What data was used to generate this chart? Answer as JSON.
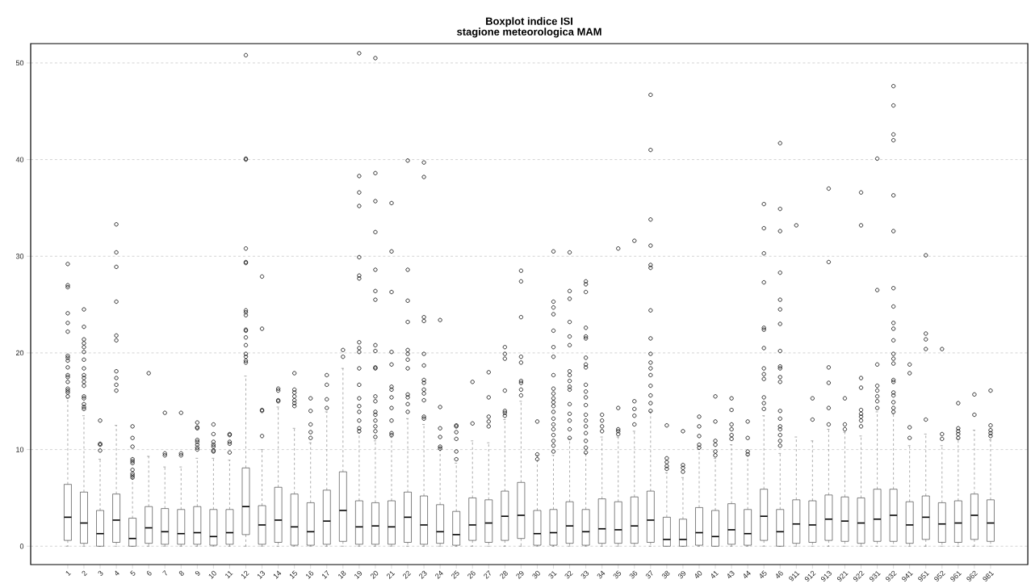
{
  "chart_data": {
    "type": "box",
    "title": "Boxplot indice ISI",
    "subtitle": "stagione meteorologica MAM",
    "categories": [
      "1",
      "2",
      "3",
      "4",
      "5",
      "6",
      "7",
      "8",
      "9",
      "10",
      "11",
      "12",
      "13",
      "14",
      "15",
      "16",
      "17",
      "18",
      "19",
      "20",
      "21",
      "22",
      "23",
      "24",
      "25",
      "26",
      "27",
      "28",
      "29",
      "30",
      "31",
      "32",
      "33",
      "34",
      "35",
      "36",
      "37",
      "38",
      "39",
      "40",
      "41",
      "43",
      "44",
      "45",
      "46",
      "911",
      "912",
      "913",
      "921",
      "922",
      "931",
      "932",
      "941",
      "951",
      "952",
      "961",
      "962",
      "981"
    ],
    "boxes": [
      {
        "low": 0,
        "q1": 0.6,
        "median": 3.0,
        "q3": 6.4,
        "high": 15.3,
        "outliers": [
          29.2,
          27.0,
          26.8,
          24.1,
          23.1,
          22.2,
          19.7,
          19.5,
          19.2,
          18.5,
          17.7,
          17.5,
          17.0,
          16.3,
          16.1,
          15.9,
          15.5
        ]
      },
      {
        "low": 0,
        "q1": 0.3,
        "median": 2.4,
        "q3": 5.6,
        "high": 13.5,
        "outliers": [
          24.5,
          22.7,
          21.4,
          21.0,
          20.6,
          20.1,
          19.3,
          18.4,
          17.7,
          17.4,
          17.0,
          16.6,
          15.5,
          15.3,
          14.7,
          14.4,
          14.2
        ]
      },
      {
        "low": 0,
        "q1": 0,
        "median": 1.3,
        "q3": 3.7,
        "high": 9.0,
        "outliers": [
          13.0,
          10.6,
          10.5,
          9.9
        ]
      },
      {
        "low": 0,
        "q1": 0.4,
        "median": 2.7,
        "q3": 5.4,
        "high": 12.5,
        "outliers": [
          33.3,
          30.4,
          28.9,
          25.3,
          21.8,
          21.3,
          18.1,
          17.4,
          16.7,
          16.1
        ]
      },
      {
        "low": 0,
        "q1": 0,
        "median": 0.8,
        "q3": 2.9,
        "high": 7.0,
        "outliers": [
          12.4,
          11.2,
          10.3,
          9.0,
          8.8,
          8.6,
          7.9,
          7.5,
          7.3,
          7.1
        ]
      },
      {
        "low": 0,
        "q1": 0.3,
        "median": 1.9,
        "q3": 4.1,
        "high": 9.3,
        "outliers": [
          17.9
        ]
      },
      {
        "low": 0,
        "q1": 0.2,
        "median": 1.5,
        "q3": 3.9,
        "high": 8.2,
        "outliers": [
          13.8,
          9.6,
          9.4
        ]
      },
      {
        "low": 0,
        "q1": 0.2,
        "median": 1.3,
        "q3": 3.8,
        "high": 8.2,
        "outliers": [
          13.8,
          9.6,
          9.4
        ]
      },
      {
        "low": 0,
        "q1": 0.2,
        "median": 1.4,
        "q3": 4.1,
        "high": 9.1,
        "outliers": [
          12.8,
          12.3,
          12.2,
          11.0,
          10.8,
          10.5,
          10.2,
          10.0
        ]
      },
      {
        "low": 0,
        "q1": 0.1,
        "median": 1.0,
        "q3": 3.8,
        "high": 9.1,
        "outliers": [
          12.6,
          11.6,
          10.8,
          10.5,
          10.3,
          9.9,
          9.8
        ]
      },
      {
        "low": 0,
        "q1": 0.2,
        "median": 1.4,
        "q3": 3.8,
        "high": 8.9,
        "outliers": [
          11.6,
          11.5,
          10.8,
          10.6,
          9.7
        ]
      },
      {
        "low": 0,
        "q1": 1.2,
        "median": 4.1,
        "q3": 8.1,
        "high": 17.6,
        "outliers": [
          50.8,
          40.1,
          40.0,
          30.8,
          29.4,
          29.3,
          24.4,
          24.2,
          23.9,
          22.4,
          22.3,
          21.6,
          20.8,
          19.9,
          19.6,
          19.2,
          19.0
        ]
      },
      {
        "low": 0,
        "q1": 0.2,
        "median": 2.2,
        "q3": 4.2,
        "high": 10.0,
        "outliers": [
          27.9,
          22.5,
          14.1,
          14.0,
          11.4
        ]
      },
      {
        "low": 0,
        "q1": 0.4,
        "median": 2.7,
        "q3": 6.1,
        "high": 14.4,
        "outliers": [
          16.3,
          16.1,
          15.1,
          15.0
        ]
      },
      {
        "low": 0,
        "q1": 0.1,
        "median": 2.0,
        "q3": 5.4,
        "high": 12.2,
        "outliers": [
          17.9,
          16.2,
          15.9,
          15.5,
          15.1,
          14.8,
          14.5
        ]
      },
      {
        "low": 0,
        "q1": 0.1,
        "median": 1.5,
        "q3": 4.5,
        "high": 10.7,
        "outliers": [
          15.3,
          14.0,
          12.6,
          11.8,
          11.2
        ]
      },
      {
        "low": 0,
        "q1": 0.2,
        "median": 2.6,
        "q3": 5.8,
        "high": 13.9,
        "outliers": [
          17.7,
          16.7,
          15.2,
          14.3
        ]
      },
      {
        "low": 0,
        "q1": 0.5,
        "median": 3.7,
        "q3": 7.7,
        "high": 18.4,
        "outliers": [
          20.3,
          19.6
        ]
      },
      {
        "low": 0,
        "q1": 0.2,
        "median": 2.0,
        "q3": 4.7,
        "high": 11.7,
        "outliers": [
          51.0,
          38.3,
          36.6,
          35.2,
          29.9,
          28.0,
          27.7,
          21.1,
          20.5,
          20.1,
          18.4,
          16.7,
          15.3,
          14.5,
          13.9,
          13.0,
          12.2,
          11.9
        ]
      },
      {
        "low": 0,
        "q1": 0.2,
        "median": 2.1,
        "q3": 4.5,
        "high": 10.9,
        "outliers": [
          50.5,
          38.6,
          35.7,
          32.5,
          28.6,
          26.4,
          25.5,
          20.8,
          20.2,
          18.5,
          18.4,
          15.5,
          15.0,
          13.9,
          13.6,
          13.0,
          12.4,
          11.9,
          11.3
        ]
      },
      {
        "low": 0,
        "q1": 0.2,
        "median": 2.0,
        "q3": 4.7,
        "high": 11.3,
        "outliers": [
          35.5,
          30.5,
          26.3,
          20.1,
          18.8,
          16.5,
          16.2,
          15.4,
          14.3,
          13.0,
          11.7,
          11.5
        ]
      },
      {
        "low": 0,
        "q1": 0.4,
        "median": 3.0,
        "q3": 5.6,
        "high": 13.2,
        "outliers": [
          39.9,
          28.6,
          25.4,
          23.2,
          20.3,
          19.9,
          19.3,
          18.4,
          15.7,
          15.4,
          14.7,
          13.9
        ]
      },
      {
        "low": 0,
        "q1": 0.2,
        "median": 2.2,
        "q3": 5.2,
        "high": 12.6,
        "outliers": [
          39.7,
          38.2,
          23.7,
          23.3,
          19.9,
          18.7,
          17.2,
          16.9,
          16.2,
          15.8,
          15.1,
          13.4,
          13.2
        ]
      },
      {
        "low": 0,
        "q1": 0.3,
        "median": 1.5,
        "q3": 4.3,
        "high": 10.2,
        "outliers": [
          23.4,
          14.4,
          12.2,
          11.3,
          10.3,
          10.1
        ]
      },
      {
        "low": 0,
        "q1": 0.1,
        "median": 1.2,
        "q3": 3.6,
        "high": 8.6,
        "outliers": [
          12.5,
          12.4,
          11.8,
          11.1,
          9.8,
          9.0
        ]
      },
      {
        "low": 0,
        "q1": 0.6,
        "median": 2.2,
        "q3": 5.0,
        "high": 10.9,
        "outliers": [
          17.0,
          12.7
        ]
      },
      {
        "low": 0,
        "q1": 0.4,
        "median": 2.4,
        "q3": 4.8,
        "high": 10.7,
        "outliers": [
          18.0,
          15.4,
          13.4,
          12.9,
          12.4
        ]
      },
      {
        "low": 0,
        "q1": 0.6,
        "median": 3.1,
        "q3": 5.7,
        "high": 13.1,
        "outliers": [
          20.6,
          19.9,
          19.4,
          16.1,
          14.0,
          13.8,
          13.5
        ]
      },
      {
        "low": 0,
        "q1": 0.8,
        "median": 3.2,
        "q3": 6.6,
        "high": 15.0,
        "outliers": [
          28.5,
          27.4,
          23.7,
          19.6,
          19.0,
          17.1,
          16.9,
          16.2,
          15.6
        ]
      },
      {
        "low": 0,
        "q1": 0.1,
        "median": 1.3,
        "q3": 3.7,
        "high": 9.4,
        "outliers": [
          12.9,
          9.5,
          9.0
        ]
      },
      {
        "low": 0,
        "q1": 0.1,
        "median": 1.4,
        "q3": 3.8,
        "high": 9.4,
        "outliers": [
          30.5,
          25.3,
          24.7,
          24.0,
          22.3,
          20.6,
          19.6,
          17.7,
          16.3,
          15.8,
          15.3,
          14.9,
          14.5,
          13.9,
          13.2,
          12.6,
          12.1,
          11.5,
          10.9,
          10.4,
          9.8
        ]
      },
      {
        "low": 0,
        "q1": 0.3,
        "median": 2.1,
        "q3": 4.6,
        "high": 11.1,
        "outliers": [
          30.4,
          26.4,
          25.6,
          23.2,
          21.7,
          20.8,
          18.1,
          17.7,
          17.1,
          16.5,
          16.2,
          14.7,
          13.7,
          13.0,
          12.1,
          11.2
        ]
      },
      {
        "low": 0,
        "q1": 0.1,
        "median": 1.5,
        "q3": 3.8,
        "high": 9.6,
        "outliers": [
          27.4,
          27.1,
          26.3,
          22.6,
          21.7,
          21.5,
          19.5,
          18.8,
          18.5,
          16.7,
          16.0,
          15.4,
          14.6,
          13.6,
          13.0,
          12.4,
          11.7,
          10.9,
          10.2,
          9.7
        ]
      },
      {
        "low": 0,
        "q1": 0.3,
        "median": 1.8,
        "q3": 4.9,
        "high": 11.3,
        "outliers": [
          13.6,
          13.0,
          12.4,
          11.9
        ]
      },
      {
        "low": 0,
        "q1": 0.3,
        "median": 1.7,
        "q3": 4.6,
        "high": 11.3,
        "outliers": [
          30.8,
          14.3,
          12.1,
          11.9,
          11.6
        ]
      },
      {
        "low": 0,
        "q1": 0.3,
        "median": 2.1,
        "q3": 5.1,
        "high": 11.9,
        "outliers": [
          31.6,
          15.0,
          14.2,
          13.5,
          12.6
        ]
      },
      {
        "low": 0,
        "q1": 0.4,
        "median": 2.7,
        "q3": 5.7,
        "high": 13.9,
        "outliers": [
          46.7,
          41.0,
          33.8,
          31.1,
          29.1,
          28.8,
          24.4,
          21.5,
          19.9,
          19.0,
          18.4,
          17.7,
          16.6,
          15.6,
          14.8,
          14.0
        ]
      },
      {
        "low": 0,
        "q1": 0,
        "median": 0.7,
        "q3": 3.0,
        "high": 7.6,
        "outliers": [
          12.5,
          9.1,
          8.7,
          8.3,
          8.0
        ]
      },
      {
        "low": 0,
        "q1": 0,
        "median": 0.7,
        "q3": 2.8,
        "high": 7.1,
        "outliers": [
          11.9,
          8.4,
          8.1,
          7.7
        ]
      },
      {
        "low": 0,
        "q1": 0.1,
        "median": 1.4,
        "q3": 4.0,
        "high": 10.0,
        "outliers": [
          13.4,
          12.4,
          11.4,
          10.5,
          10.2
        ]
      },
      {
        "low": 0,
        "q1": 0,
        "median": 1.0,
        "q3": 3.7,
        "high": 9.1,
        "outliers": [
          15.5,
          12.9,
          10.9,
          10.5,
          9.8,
          9.4
        ]
      },
      {
        "low": 0,
        "q1": 0.2,
        "median": 1.7,
        "q3": 4.4,
        "high": 10.5,
        "outliers": [
          15.3,
          14.1,
          12.6,
          12.1,
          11.5,
          11.1
        ]
      },
      {
        "low": 0,
        "q1": 0.1,
        "median": 1.3,
        "q3": 3.8,
        "high": 9.4,
        "outliers": [
          12.9,
          11.2,
          9.8,
          9.5
        ]
      },
      {
        "low": 0,
        "q1": 0.6,
        "median": 3.1,
        "q3": 5.9,
        "high": 13.5,
        "outliers": [
          35.4,
          32.9,
          30.3,
          27.3,
          22.6,
          22.4,
          20.5,
          18.4,
          17.8,
          17.3,
          15.4,
          14.8,
          14.2
        ]
      },
      {
        "low": 0,
        "q1": 0,
        "median": 1.5,
        "q3": 3.8,
        "high": 9.6,
        "outliers": [
          41.7,
          34.9,
          32.6,
          28.3,
          25.5,
          24.5,
          23.0,
          20.2,
          18.6,
          18.4,
          17.5,
          17.0,
          14.0,
          13.2,
          12.4,
          12.1,
          11.5,
          10.9,
          10.4
        ]
      },
      {
        "low": 0,
        "q1": 0.3,
        "median": 2.3,
        "q3": 4.8,
        "high": 11.3,
        "outliers": [
          33.2
        ]
      },
      {
        "low": 0,
        "q1": 0.4,
        "median": 2.2,
        "q3": 4.7,
        "high": 10.9,
        "outliers": [
          15.3,
          13.1
        ]
      },
      {
        "low": 0,
        "q1": 0.6,
        "median": 2.8,
        "q3": 5.3,
        "high": 12.1,
        "outliers": [
          37.0,
          29.4,
          18.5,
          16.9,
          14.3,
          12.6
        ]
      },
      {
        "low": 0,
        "q1": 0.5,
        "median": 2.6,
        "q3": 5.1,
        "high": 11.8,
        "outliers": [
          15.3,
          12.6,
          12.1
        ]
      },
      {
        "low": 0,
        "q1": 0.3,
        "median": 2.4,
        "q3": 5.0,
        "high": 11.4,
        "outliers": [
          36.6,
          33.2,
          17.4,
          16.4,
          14.1,
          13.7,
          13.4,
          13.0,
          12.4
        ]
      },
      {
        "low": 0,
        "q1": 0.5,
        "median": 2.8,
        "q3": 5.9,
        "high": 13.9,
        "outliers": [
          40.1,
          26.5,
          18.8,
          16.6,
          16.1,
          15.5,
          15.0,
          14.3
        ]
      },
      {
        "low": 0,
        "q1": 0.5,
        "median": 3.2,
        "q3": 5.9,
        "high": 13.7,
        "outliers": [
          47.6,
          45.6,
          42.6,
          42.0,
          36.3,
          32.6,
          26.7,
          24.8,
          23.1,
          22.5,
          21.3,
          19.9,
          19.4,
          18.9,
          17.2,
          17.0,
          15.9,
          15.6,
          14.9,
          14.3,
          13.9
        ]
      },
      {
        "low": 0,
        "q1": 0.3,
        "median": 2.2,
        "q3": 4.6,
        "high": 10.4,
        "outliers": [
          18.8,
          17.9,
          12.3,
          11.2
        ]
      },
      {
        "low": 0,
        "q1": 0.7,
        "median": 3.0,
        "q3": 5.2,
        "high": 11.6,
        "outliers": [
          30.1,
          22.0,
          21.4,
          20.4,
          13.1
        ]
      },
      {
        "low": 0,
        "q1": 0.4,
        "median": 2.3,
        "q3": 4.5,
        "high": 10.4,
        "outliers": [
          20.4,
          11.6,
          11.1
        ]
      },
      {
        "low": 0,
        "q1": 0.4,
        "median": 2.4,
        "q3": 4.7,
        "high": 11.1,
        "outliers": [
          14.8,
          12.2,
          11.9,
          11.6,
          11.2
        ]
      },
      {
        "low": 0,
        "q1": 0.7,
        "median": 3.2,
        "q3": 5.4,
        "high": 12.0,
        "outliers": [
          15.7,
          13.6
        ]
      },
      {
        "low": 0,
        "q1": 0.5,
        "median": 2.4,
        "q3": 4.8,
        "high": 11.0,
        "outliers": [
          16.1,
          12.5,
          12.0,
          11.7,
          11.4
        ]
      }
    ],
    "ylim": [
      -1.9,
      52
    ],
    "yticks": [
      0,
      10,
      20,
      30,
      40,
      50
    ],
    "grid": "y",
    "marker": "circle",
    "line_style": "dashed"
  }
}
